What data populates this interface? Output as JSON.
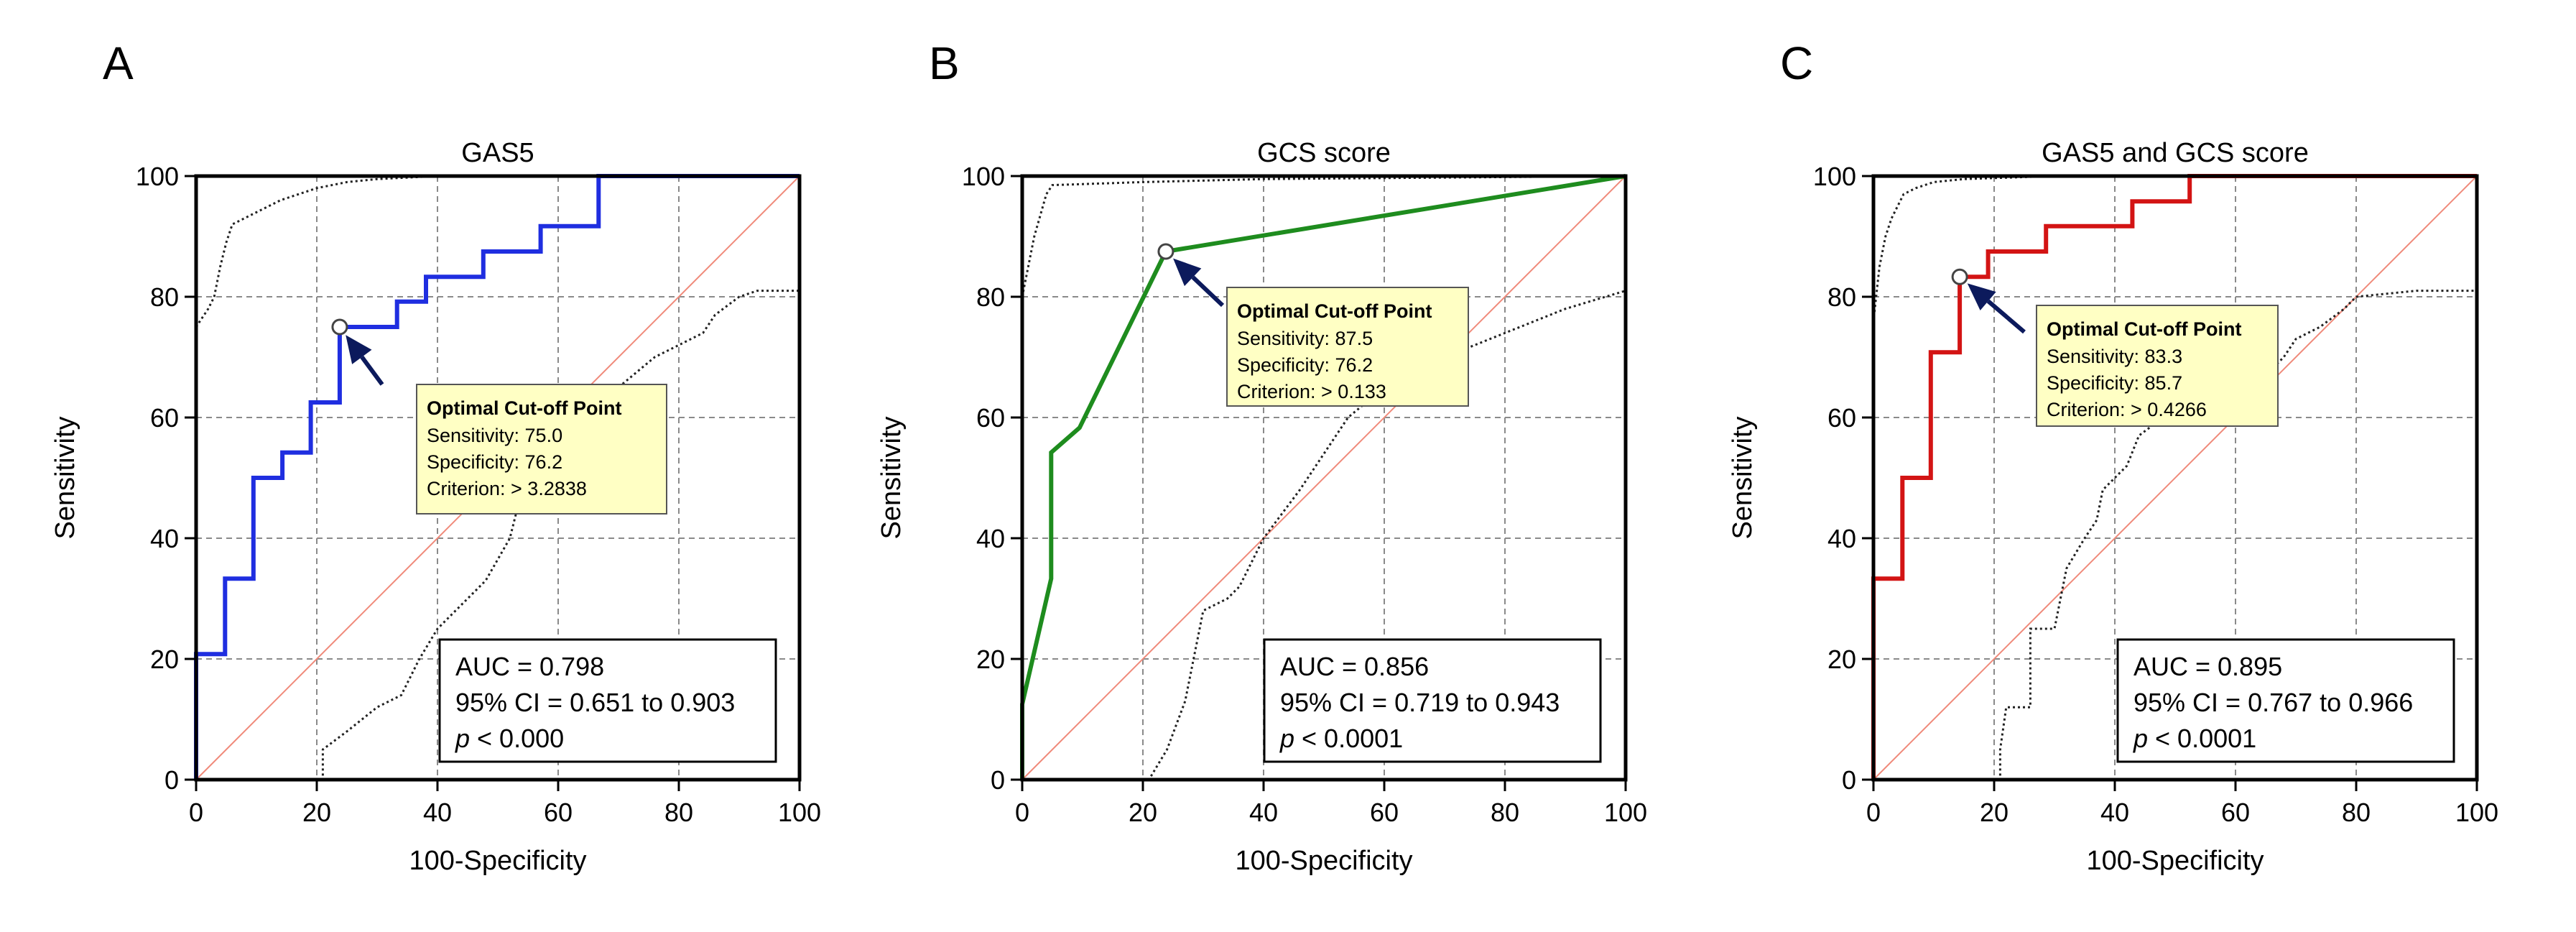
{
  "chart_data": [
    {
      "type": "line",
      "panel_label": "A",
      "title": "GAS5",
      "xlabel": "100-Specificity",
      "ylabel": "Sensitivity",
      "xlim": [
        0,
        100
      ],
      "ylim": [
        0,
        100
      ],
      "xticks": [
        0,
        20,
        40,
        60,
        80,
        100
      ],
      "yticks": [
        0,
        20,
        40,
        60,
        80,
        100
      ],
      "tick_labels": [
        "0",
        "20",
        "40",
        "60",
        "80",
        "100"
      ],
      "grid": true,
      "color": "#1f2ee0",
      "roc_points": [
        [
          0,
          0
        ],
        [
          0,
          20.8
        ],
        [
          4.8,
          20.8
        ],
        [
          4.8,
          33.3
        ],
        [
          9.5,
          33.3
        ],
        [
          9.5,
          50
        ],
        [
          14.3,
          50
        ],
        [
          14.3,
          54.2
        ],
        [
          19,
          54.2
        ],
        [
          19,
          62.5
        ],
        [
          23.8,
          62.5
        ],
        [
          23.8,
          75
        ],
        [
          33.3,
          75
        ],
        [
          33.3,
          79.2
        ],
        [
          38.1,
          79.2
        ],
        [
          38.1,
          83.3
        ],
        [
          47.6,
          83.3
        ],
        [
          47.6,
          87.5
        ],
        [
          57.1,
          87.5
        ],
        [
          57.1,
          91.7
        ],
        [
          66.7,
          91.7
        ],
        [
          66.7,
          100
        ],
        [
          100,
          100
        ]
      ],
      "ci_upper": [
        [
          0,
          0
        ],
        [
          0,
          75
        ],
        [
          2,
          78
        ],
        [
          3,
          80
        ],
        [
          4,
          85
        ],
        [
          5,
          89
        ],
        [
          6,
          92
        ],
        [
          8,
          93
        ],
        [
          10,
          94
        ],
        [
          12,
          95
        ],
        [
          14,
          96
        ],
        [
          17,
          97
        ],
        [
          20,
          98
        ],
        [
          25,
          99
        ],
        [
          30,
          99.5
        ],
        [
          40,
          100
        ],
        [
          100,
          100
        ]
      ],
      "ci_lower": [
        [
          0,
          0
        ],
        [
          21,
          0
        ],
        [
          21,
          5
        ],
        [
          25,
          8
        ],
        [
          30,
          12
        ],
        [
          34,
          14
        ],
        [
          37,
          20
        ],
        [
          40,
          25
        ],
        [
          45,
          30
        ],
        [
          48,
          33
        ],
        [
          52,
          40
        ],
        [
          54,
          48
        ],
        [
          56,
          55
        ],
        [
          60,
          58
        ],
        [
          62,
          60
        ],
        [
          66,
          62
        ],
        [
          70,
          65
        ],
        [
          76,
          70
        ],
        [
          80,
          72
        ],
        [
          84,
          74
        ],
        [
          86,
          77
        ],
        [
          90,
          80
        ],
        [
          93,
          81
        ],
        [
          100,
          81
        ],
        [
          100,
          100
        ]
      ],
      "optimal_point": [
        23.8,
        75
      ],
      "cutoff_box": {
        "title": "Optimal Cut-off Point",
        "lines": [
          "Sensitivity: 75.0",
          "Specificity: 76.2",
          "Criterion: > 3.2838"
        ]
      },
      "auc_box": {
        "auc_line": "AUC = 0.798",
        "ci_line": "95% CI = 0.651 to 0.903",
        "p_symbol": "p",
        "p_rest": " < 0.000"
      }
    },
    {
      "type": "line",
      "panel_label": "B",
      "title": "GCS score",
      "xlabel": "100-Specificity",
      "ylabel": "Sensitivity",
      "xlim": [
        0,
        100
      ],
      "ylim": [
        0,
        100
      ],
      "xticks": [
        0,
        20,
        40,
        60,
        80,
        100
      ],
      "yticks": [
        0,
        20,
        40,
        60,
        80,
        100
      ],
      "tick_labels": [
        "0",
        "20",
        "40",
        "60",
        "80",
        "100"
      ],
      "grid": true,
      "color": "#1e8c1e",
      "roc_points": [
        [
          0,
          0
        ],
        [
          0,
          12.5
        ],
        [
          4.8,
          33.3
        ],
        [
          4.8,
          54.2
        ],
        [
          9.5,
          58.3
        ],
        [
          23.8,
          87.5
        ],
        [
          100,
          100
        ]
      ],
      "ci_upper": [
        [
          0,
          0
        ],
        [
          0,
          80
        ],
        [
          2,
          90
        ],
        [
          4,
          97
        ],
        [
          5,
          98.5
        ],
        [
          20,
          99
        ],
        [
          40,
          99.5
        ],
        [
          100,
          100
        ]
      ],
      "ci_lower": [
        [
          0,
          0
        ],
        [
          21,
          0
        ],
        [
          24,
          5
        ],
        [
          27,
          13
        ],
        [
          30,
          28
        ],
        [
          34,
          30
        ],
        [
          36,
          32
        ],
        [
          40,
          40
        ],
        [
          46,
          48
        ],
        [
          54,
          60
        ],
        [
          60,
          65
        ],
        [
          70,
          70
        ],
        [
          80,
          74
        ],
        [
          90,
          78
        ],
        [
          100,
          81
        ],
        [
          100,
          100
        ]
      ],
      "optimal_point": [
        23.8,
        87.5
      ],
      "cutoff_box": {
        "title": "Optimal Cut-off Point",
        "lines": [
          "Sensitivity: 87.5",
          "Specificity: 76.2",
          "Criterion: > 0.133"
        ]
      },
      "auc_box": {
        "auc_line": "AUC = 0.856",
        "ci_line": "95% CI = 0.719 to 0.943",
        "p_symbol": "p",
        "p_rest": " < 0.0001"
      }
    },
    {
      "type": "line",
      "panel_label": "C",
      "title": "GAS5 and GCS score",
      "xlabel": "100-Specificity",
      "ylabel": "Sensitivity",
      "xlim": [
        0,
        100
      ],
      "ylim": [
        0,
        100
      ],
      "xticks": [
        0,
        20,
        40,
        60,
        80,
        100
      ],
      "yticks": [
        0,
        20,
        40,
        60,
        80,
        100
      ],
      "tick_labels": [
        "0",
        "20",
        "40",
        "60",
        "80",
        "100"
      ],
      "grid": true,
      "color": "#d31414",
      "roc_points": [
        [
          0,
          0
        ],
        [
          0,
          33.3
        ],
        [
          4.8,
          33.3
        ],
        [
          4.8,
          50
        ],
        [
          9.5,
          50
        ],
        [
          9.5,
          70.8
        ],
        [
          14.3,
          70.8
        ],
        [
          14.3,
          83.3
        ],
        [
          19,
          83.3
        ],
        [
          19,
          87.5
        ],
        [
          28.6,
          87.5
        ],
        [
          28.6,
          91.7
        ],
        [
          42.9,
          91.7
        ],
        [
          42.9,
          95.8
        ],
        [
          52.4,
          95.8
        ],
        [
          52.4,
          100
        ],
        [
          100,
          100
        ]
      ],
      "ci_upper": [
        [
          0,
          0
        ],
        [
          0,
          76
        ],
        [
          1,
          85
        ],
        [
          2,
          90
        ],
        [
          3,
          93
        ],
        [
          5,
          97
        ],
        [
          7,
          98
        ],
        [
          10,
          99
        ],
        [
          15,
          99.5
        ],
        [
          30,
          100
        ],
        [
          100,
          100
        ]
      ],
      "ci_lower": [
        [
          0,
          0
        ],
        [
          21,
          0
        ],
        [
          21,
          5
        ],
        [
          22,
          12
        ],
        [
          26,
          12
        ],
        [
          26,
          25
        ],
        [
          30,
          25
        ],
        [
          32,
          35
        ],
        [
          35,
          40
        ],
        [
          37,
          43
        ],
        [
          38,
          48
        ],
        [
          40,
          50
        ],
        [
          42,
          52
        ],
        [
          44,
          57
        ],
        [
          48,
          60
        ],
        [
          52,
          64
        ],
        [
          56,
          66
        ],
        [
          60,
          68
        ],
        [
          66,
          68
        ],
        [
          68,
          70
        ],
        [
          70,
          73
        ],
        [
          74,
          75
        ],
        [
          78,
          78
        ],
        [
          80,
          80
        ],
        [
          90,
          81
        ],
        [
          100,
          81
        ],
        [
          100,
          100
        ]
      ],
      "optimal_point": [
        14.3,
        83.3
      ],
      "cutoff_box": {
        "title": "Optimal Cut-off Point",
        "lines": [
          "Sensitivity: 83.3",
          "Specificity: 85.7",
          "Criterion: > 0.4266"
        ]
      },
      "auc_box": {
        "auc_line": "AUC = 0.895",
        "ci_line": "95% CI = 0.767 to 0.966",
        "p_symbol": "p",
        "p_rest": " < 0.0001"
      }
    }
  ]
}
